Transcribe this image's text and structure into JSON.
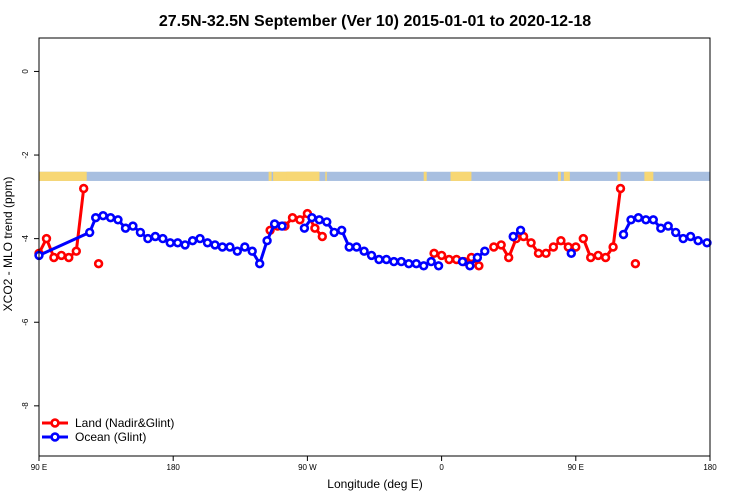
{
  "chart_data": {
    "type": "line",
    "title": "27.5N-32.5N September (Ver 10)   2015-01-01 to 2020-12-18",
    "xlabel": "Longitude (deg E)",
    "ylabel": "XCO2 - MLO trend (ppm)",
    "xlim": [
      90,
      540
    ],
    "ylim": [
      -9.2,
      0.8
    ],
    "x_ticks": [
      {
        "value": 90,
        "label": "90 E"
      },
      {
        "value": 180,
        "label": "180"
      },
      {
        "value": 270,
        "label": "90 W"
      },
      {
        "value": 360,
        "label": "0"
      },
      {
        "value": 450,
        "label": "90 E"
      },
      {
        "value": 540,
        "label": "180"
      }
    ],
    "y_ticks": [
      {
        "value": 0,
        "label": "0"
      },
      {
        "value": -2,
        "label": "-2"
      },
      {
        "value": -4,
        "label": "-4"
      },
      {
        "value": -6,
        "label": "-6"
      },
      {
        "value": -8,
        "label": "-8"
      }
    ],
    "surface_band": {
      "y_top": -2.4,
      "y_bottom": -2.62,
      "ocean_color": "#a8bfe0",
      "land_color": "#f7d774",
      "land_segments": [
        [
          90,
          122
        ],
        [
          244,
          246
        ],
        [
          247,
          258
        ],
        [
          256,
          278
        ],
        [
          258,
          278
        ],
        [
          282,
          283
        ],
        [
          348,
          350
        ],
        [
          366,
          380
        ],
        [
          438,
          440
        ],
        [
          442,
          446
        ],
        [
          478,
          480
        ],
        [
          496,
          502
        ]
      ]
    },
    "series": [
      {
        "name": "Land (Nadir&Glint)",
        "color": "#ff0000",
        "segments": [
          [
            [
              90,
              -4.35
            ],
            [
              95,
              -4.0
            ],
            [
              100,
              -4.45
            ],
            [
              105,
              -4.4
            ],
            [
              110,
              -4.45
            ],
            [
              115,
              -4.3
            ],
            [
              120,
              -2.8
            ]
          ],
          [
            [
              130,
              -4.6
            ]
          ],
          [
            [
              245,
              -3.8
            ],
            [
              250,
              -3.7
            ],
            [
              255,
              -3.7
            ],
            [
              260,
              -3.5
            ],
            [
              265,
              -3.55
            ],
            [
              270,
              -3.4
            ],
            [
              275,
              -3.75
            ],
            [
              280,
              -3.95
            ]
          ],
          [
            [
              355,
              -4.35
            ],
            [
              360,
              -4.4
            ],
            [
              365,
              -4.5
            ],
            [
              370,
              -4.5
            ],
            [
              375,
              -4.55
            ],
            [
              380,
              -4.45
            ],
            [
              385,
              -4.65
            ]
          ],
          [
            [
              395,
              -4.2
            ],
            [
              400,
              -4.15
            ],
            [
              405,
              -4.45
            ],
            [
              410,
              -4.0
            ],
            [
              415,
              -3.95
            ],
            [
              420,
              -4.1
            ],
            [
              425,
              -4.35
            ],
            [
              430,
              -4.35
            ],
            [
              435,
              -4.2
            ],
            [
              440,
              -4.05
            ],
            [
              445,
              -4.2
            ],
            [
              450,
              -4.2
            ]
          ],
          [
            [
              455,
              -4.0
            ],
            [
              460,
              -4.45
            ],
            [
              465,
              -4.4
            ],
            [
              470,
              -4.45
            ],
            [
              475,
              -4.2
            ],
            [
              480,
              -2.8
            ]
          ],
          [
            [
              490,
              -4.6
            ]
          ]
        ]
      },
      {
        "name": "Ocean (Glint)",
        "color": "#0000ff",
        "segments": [
          [
            [
              90,
              -4.4
            ],
            [
              124,
              -3.85
            ],
            [
              128,
              -3.5
            ],
            [
              133,
              -3.45
            ],
            [
              138,
              -3.5
            ],
            [
              143,
              -3.55
            ],
            [
              148,
              -3.75
            ],
            [
              153,
              -3.7
            ],
            [
              158,
              -3.85
            ],
            [
              163,
              -4.0
            ],
            [
              168,
              -3.95
            ],
            [
              173,
              -4.0
            ],
            [
              178,
              -4.1
            ],
            [
              183,
              -4.1
            ],
            [
              188,
              -4.15
            ],
            [
              193,
              -4.05
            ],
            [
              198,
              -4.0
            ],
            [
              203,
              -4.1
            ],
            [
              208,
              -4.15
            ],
            [
              213,
              -4.2
            ],
            [
              218,
              -4.2
            ],
            [
              223,
              -4.3
            ],
            [
              228,
              -4.2
            ],
            [
              233,
              -4.3
            ],
            [
              238,
              -4.6
            ],
            [
              243,
              -4.05
            ],
            [
              248,
              -3.65
            ],
            [
              253,
              -3.7
            ]
          ],
          [
            [
              268,
              -3.75
            ],
            [
              273,
              -3.5
            ],
            [
              278,
              -3.55
            ],
            [
              283,
              -3.6
            ],
            [
              288,
              -3.85
            ],
            [
              293,
              -3.8
            ],
            [
              298,
              -4.2
            ],
            [
              303,
              -4.2
            ],
            [
              308,
              -4.3
            ],
            [
              313,
              -4.4
            ],
            [
              318,
              -4.5
            ],
            [
              323,
              -4.5
            ],
            [
              328,
              -4.55
            ],
            [
              333,
              -4.55
            ],
            [
              338,
              -4.6
            ],
            [
              343,
              -4.6
            ],
            [
              348,
              -4.65
            ],
            [
              353,
              -4.55
            ],
            [
              358,
              -4.65
            ]
          ],
          [
            [
              374,
              -4.55
            ],
            [
              379,
              -4.65
            ],
            [
              384,
              -4.45
            ],
            [
              389,
              -4.3
            ]
          ],
          [
            [
              408,
              -3.95
            ],
            [
              413,
              -3.8
            ]
          ],
          [
            [
              447,
              -4.35
            ]
          ],
          [
            [
              482,
              -3.9
            ],
            [
              487,
              -3.55
            ],
            [
              492,
              -3.5
            ],
            [
              497,
              -3.55
            ],
            [
              502,
              -3.55
            ],
            [
              507,
              -3.75
            ],
            [
              512,
              -3.7
            ],
            [
              517,
              -3.85
            ],
            [
              522,
              -4.0
            ],
            [
              527,
              -3.95
            ],
            [
              532,
              -4.05
            ],
            [
              538,
              -4.1
            ]
          ]
        ]
      }
    ],
    "legend": {
      "position": "bottom-left",
      "entries": [
        {
          "label": "Land (Nadir&Glint)",
          "color": "#ff0000"
        },
        {
          "label": "Ocean (Glint)",
          "color": "#0000ff"
        }
      ]
    }
  }
}
